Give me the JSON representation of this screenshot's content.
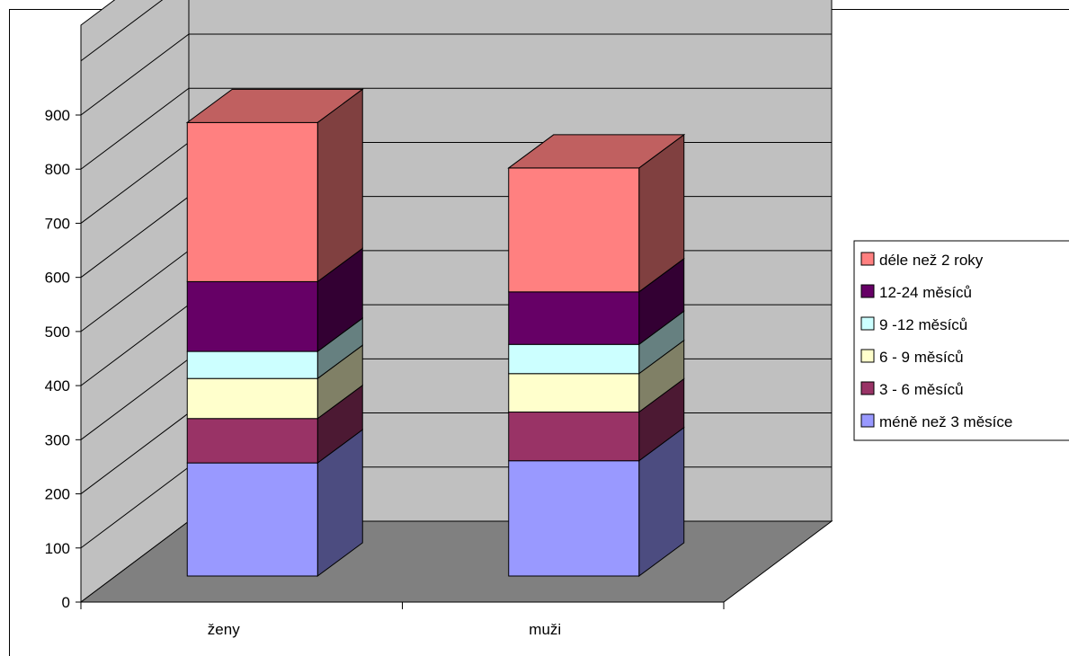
{
  "chart_data": {
    "type": "bar",
    "stacked": true,
    "three_d": true,
    "categories": [
      "ženy",
      "muži"
    ],
    "ylim": [
      0,
      900
    ],
    "yticks": [
      0,
      100,
      200,
      300,
      400,
      500,
      600,
      700,
      800,
      900
    ],
    "grid": true,
    "legend_position": "right",
    "series": [
      {
        "name": "méně než 3 měsíce",
        "values": [
          209,
          213
        ],
        "color": "#9999ff",
        "side_color": "#4c4c80"
      },
      {
        "name": "3 - 6 měsíců",
        "values": [
          82,
          90
        ],
        "color": "#993366",
        "side_color": "#4c1933"
      },
      {
        "name": "6 - 9 měsíců",
        "values": [
          74,
          71
        ],
        "color": "#ffffcc",
        "side_color": "#808066"
      },
      {
        "name": "9 -12 měsíců",
        "values": [
          50,
          54
        ],
        "color": "#ccffff",
        "side_color": "#668080"
      },
      {
        "name": "12-24 měsíců",
        "values": [
          129,
          97
        ],
        "color": "#660066",
        "side_color": "#330033"
      },
      {
        "name": "déle než 2 roky",
        "values": [
          294,
          229
        ],
        "color": "#ff8080",
        "side_color": "#804040"
      }
    ],
    "legend_order": [
      5,
      4,
      3,
      2,
      1,
      0
    ],
    "top_color": "#c06060",
    "back_wall_color": "#c0c0c0",
    "side_wall_color": "#c0c0c0",
    "floor_color": "#808080"
  }
}
